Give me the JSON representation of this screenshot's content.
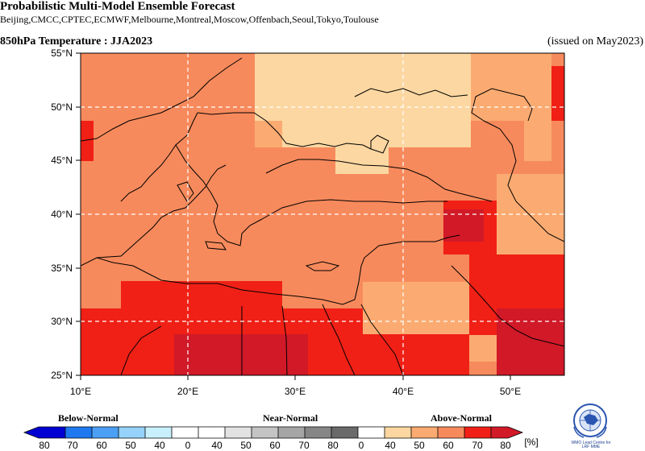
{
  "header": {
    "title": "Probabilistic Multi-Model Ensemble Forecast",
    "models": "Beijing,CMCC,CPTEC,ECMWF,Melbourne,Montreal,Moscow,Offenbach,Seoul,Tokyo,Toulouse",
    "field": "850hPa Temperature : JJA2023",
    "issued": "(issued on May2023)"
  },
  "map": {
    "lon_range": [
      10,
      55
    ],
    "lat_range": [
      25,
      55
    ],
    "lat_ticks": [
      "55°N",
      "50°N",
      "45°N",
      "40°N",
      "35°N",
      "30°N",
      "25°N"
    ],
    "lon_ticks": [
      "10°E",
      "20°E",
      "30°E",
      "40°E",
      "50°E"
    ],
    "gridlines": "dashed white",
    "category_colors": {
      "above_40_50": "#fcd7a1",
      "above_50_60": "#fbab71",
      "above_60_70": "#f78a5c",
      "above_70_80": "#f02016",
      "above_80": "#d11928"
    }
  },
  "legend": {
    "below_label": "Below-Normal",
    "near_label": "Near-Normal",
    "above_label": "Above-Normal",
    "unit": "[%]",
    "below_ticks": [
      "80",
      "70",
      "60",
      "50",
      "40"
    ],
    "near_ticks": [
      "0",
      "40",
      "50",
      "60",
      "70",
      "80"
    ],
    "above_ticks": [
      "0",
      "40",
      "50",
      "60",
      "70",
      "80"
    ],
    "below_colors": [
      "#0000d2",
      "#1e78f0",
      "#4ba0f5",
      "#96d2fa",
      "#c8f0fc"
    ],
    "near_colors": [
      "#e2e2e2",
      "#c4c4c4",
      "#a5a5a5",
      "#868686",
      "#6a6a6a"
    ],
    "above_colors": [
      "#fcd7a1",
      "#fbab71",
      "#f78a5c",
      "#f02016",
      "#d11928"
    ]
  },
  "logo": {
    "line1": "WMO Lead Centre for",
    "line2": "LRF MME"
  }
}
